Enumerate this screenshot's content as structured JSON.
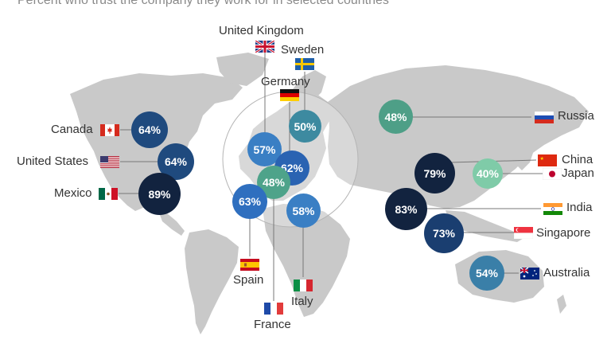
{
  "subtitle": "Percent who trust the company they work for in selected countries",
  "colors": {
    "land": "#c9c9c9",
    "dark_navy": "#12233f",
    "navy": "#1f4a7e",
    "blue": "#3a7fc4",
    "teal": "#3d8aa0",
    "green": "#4ea38a",
    "light_green": "#7fcba8"
  },
  "chart_data": {
    "type": "map",
    "values": [
      {
        "country": "United Kingdom",
        "value": "57%"
      },
      {
        "country": "Sweden",
        "value": "50%"
      },
      {
        "country": "Germany",
        "value": "62%"
      },
      {
        "country": "France",
        "value": "48%"
      },
      {
        "country": "Spain",
        "value": "63%"
      },
      {
        "country": "Italy",
        "value": "58%"
      },
      {
        "country": "Russia",
        "value": "48%"
      },
      {
        "country": "China",
        "value": "79%"
      },
      {
        "country": "Japan",
        "value": "40%"
      },
      {
        "country": "India",
        "value": "83%"
      },
      {
        "country": "Singapore",
        "value": "73%"
      },
      {
        "country": "Australia",
        "value": "54%"
      },
      {
        "country": "Canada",
        "value": "64%"
      },
      {
        "country": "United States",
        "value": "64%"
      },
      {
        "country": "Mexico",
        "value": "89%"
      }
    ]
  },
  "countries": {
    "uk": {
      "name": "United Kingdom",
      "value": "57%",
      "flag": "uk-flag"
    },
    "sweden": {
      "name": "Sweden",
      "value": "50%",
      "flag": "sweden-flag"
    },
    "germany": {
      "name": "Germany",
      "value": "62%",
      "flag": "germany-flag"
    },
    "france": {
      "name": "France",
      "value": "48%",
      "flag": "france-flag"
    },
    "spain": {
      "name": "Spain",
      "value": "63%",
      "flag": "spain-flag"
    },
    "italy": {
      "name": "Italy",
      "value": "58%",
      "flag": "italy-flag"
    },
    "russia": {
      "name": "Russia",
      "value": "48%",
      "flag": "russia-flag"
    },
    "china": {
      "name": "China",
      "value": "79%",
      "flag": "china-flag"
    },
    "japan": {
      "name": "Japan",
      "value": "40%",
      "flag": "japan-flag"
    },
    "india": {
      "name": "India",
      "value": "83%",
      "flag": "india-flag"
    },
    "singapore": {
      "name": "Singapore",
      "value": "73%",
      "flag": "singapore-flag"
    },
    "australia": {
      "name": "Australia",
      "value": "54%",
      "flag": "australia-flag"
    },
    "canada": {
      "name": "Canada",
      "value": "64%",
      "flag": "canada-flag"
    },
    "usa": {
      "name": "United States",
      "value": "64%",
      "flag": "usa-flag"
    },
    "mexico": {
      "name": "Mexico",
      "value": "89%",
      "flag": "mexico-flag"
    }
  }
}
